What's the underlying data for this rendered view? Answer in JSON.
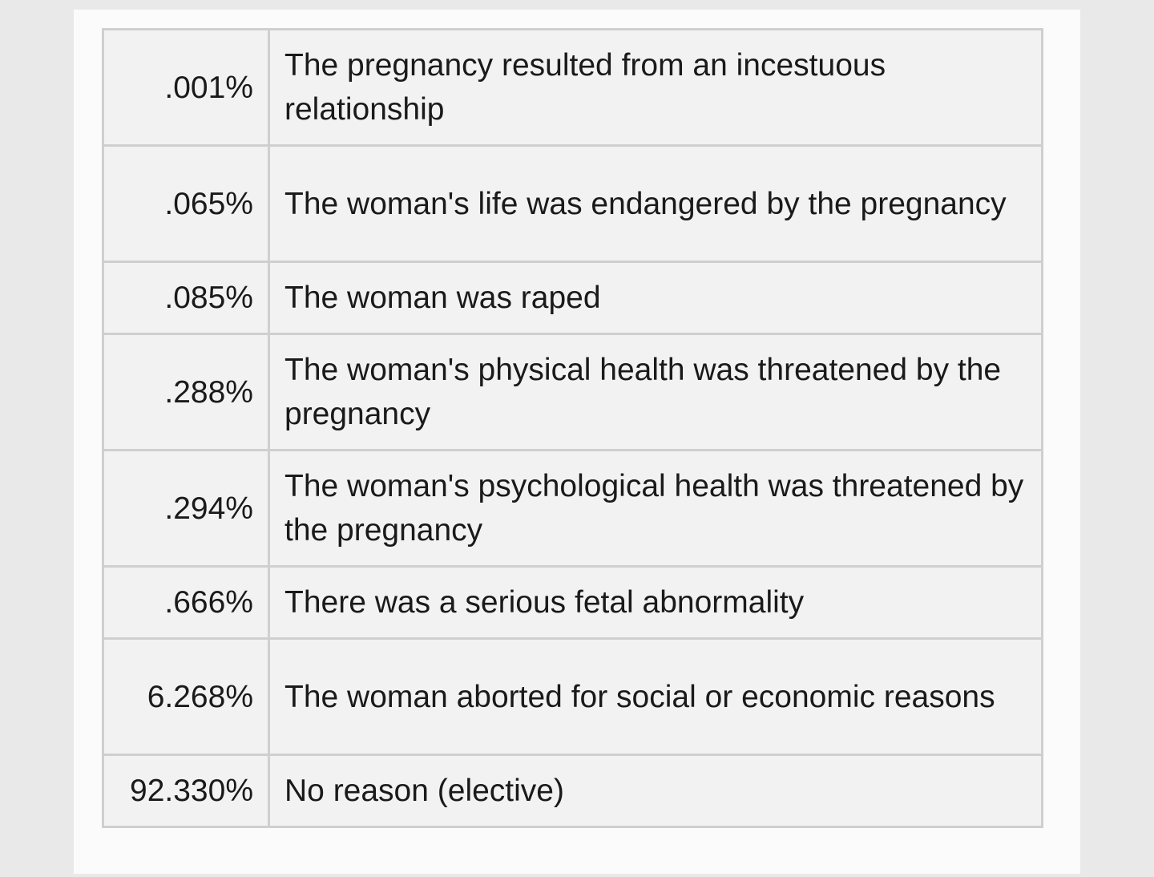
{
  "table": {
    "rows": [
      {
        "percent": ".001%",
        "reason": "The pregnancy resulted from an incestuous relationship"
      },
      {
        "percent": ".065%",
        "reason": "The woman's life was endangered by the pregnancy"
      },
      {
        "percent": ".085%",
        "reason": "The woman was raped"
      },
      {
        "percent": ".288%",
        "reason": "The woman's physical health was threatened by the pregnancy"
      },
      {
        "percent": ".294%",
        "reason": "The woman's psychological health was threatened by the pregnancy"
      },
      {
        "percent": ".666%",
        "reason": "There was a serious fetal abnormality"
      },
      {
        "percent": "6.268%",
        "reason": "The woman aborted for social or economic reasons"
      },
      {
        "percent": "92.330%",
        "reason": "No reason (elective)"
      }
    ]
  }
}
